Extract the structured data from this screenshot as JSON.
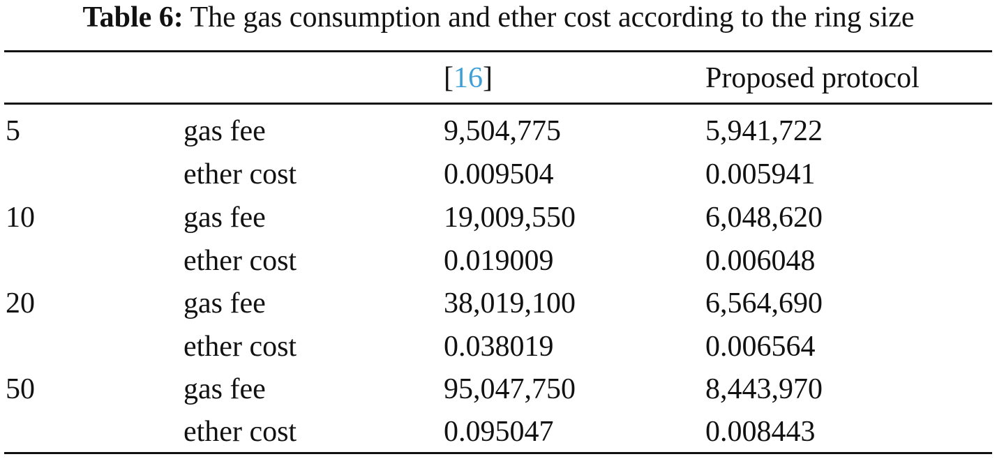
{
  "caption": {
    "label": "Table 6:",
    "text": "The gas consumption and ether cost according to the ring size"
  },
  "table": {
    "headers": {
      "col2_open": "[",
      "col2_ref": "16",
      "col2_close": "]",
      "col3": "Proposed protocol"
    },
    "groups": [
      {
        "ring_size": "5",
        "rows": [
          {
            "metric": "gas fee",
            "ref16": "9,504,775",
            "proposed": "5,941,722"
          },
          {
            "metric": "ether cost",
            "ref16": "0.009504",
            "proposed": "0.005941"
          }
        ]
      },
      {
        "ring_size": "10",
        "rows": [
          {
            "metric": "gas fee",
            "ref16": "19,009,550",
            "proposed": "6,048,620"
          },
          {
            "metric": "ether cost",
            "ref16": "0.019009",
            "proposed": "0.006048"
          }
        ]
      },
      {
        "ring_size": "20",
        "rows": [
          {
            "metric": "gas fee",
            "ref16": "38,019,100",
            "proposed": "6,564,690"
          },
          {
            "metric": "ether cost",
            "ref16": "0.038019",
            "proposed": "0.006564"
          }
        ]
      },
      {
        "ring_size": "50",
        "rows": [
          {
            "metric": "gas fee",
            "ref16": "95,047,750",
            "proposed": "8,443,970"
          },
          {
            "metric": "ether cost",
            "ref16": "0.095047",
            "proposed": "0.008443"
          }
        ]
      }
    ],
    "colors": {
      "text": "#111111",
      "link": "#3fa0d8"
    }
  }
}
